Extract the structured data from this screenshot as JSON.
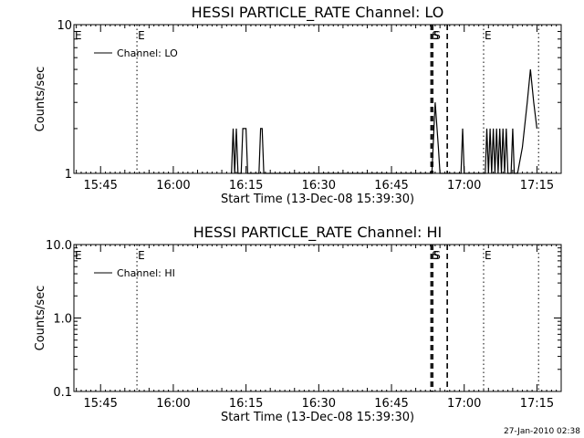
{
  "chart_data": [
    {
      "type": "line",
      "title": "HESSI PARTICLE_RATE Channel: LO",
      "xlabel": "Start Time (13-Dec-08 15:39:30)",
      "ylabel": "Counts/sec",
      "yscale": "log",
      "ylim": [
        1,
        10
      ],
      "xlim": [
        "15:39:30",
        "17:20:00"
      ],
      "x_ticks": [
        "15:45",
        "16:00",
        "16:15",
        "16:30",
        "16:45",
        "17:00",
        "17:15"
      ],
      "y_ticks": [
        "1",
        "10"
      ],
      "legend": {
        "label": "Channel: LO",
        "position": "top-left"
      },
      "markers": [
        {
          "time": "15:52:30",
          "style": "dotted",
          "label": "E"
        },
        {
          "time": "16:53:10",
          "style": "dashed",
          "label": "S"
        },
        {
          "time": "16:53:30",
          "style": "dashed",
          "label": "S"
        },
        {
          "time": "16:56:30",
          "style": "dashed",
          "label": ""
        },
        {
          "time": "17:04:00",
          "style": "dotted",
          "label": "E"
        },
        {
          "time": "17:15:20",
          "style": "dotted",
          "label": ""
        }
      ],
      "series": [
        {
          "name": "Channel: LO",
          "points": [
            [
              "16:12:00",
              1
            ],
            [
              "16:12:20",
              2
            ],
            [
              "16:12:40",
              1
            ],
            [
              "16:13:00",
              2
            ],
            [
              "16:13:20",
              1
            ],
            [
              "16:14:00",
              1
            ],
            [
              "16:14:20",
              2
            ],
            [
              "16:15:00",
              2
            ],
            [
              "16:15:20",
              1
            ],
            [
              "16:17:40",
              1
            ],
            [
              "16:18:00",
              2
            ],
            [
              "16:18:20",
              2
            ],
            [
              "16:18:40",
              1
            ],
            [
              "16:53:20",
              1
            ],
            [
              "16:54:00",
              3
            ],
            [
              "16:54:40",
              1.5
            ],
            [
              "16:55:00",
              1
            ],
            [
              "16:59:20",
              1
            ],
            [
              "16:59:40",
              2
            ],
            [
              "17:00:00",
              1
            ],
            [
              "17:04:20",
              1
            ],
            [
              "17:04:40",
              2
            ],
            [
              "17:05:00",
              1
            ],
            [
              "17:05:20",
              2
            ],
            [
              "17:05:40",
              1
            ],
            [
              "17:06:00",
              2
            ],
            [
              "17:06:20",
              1
            ],
            [
              "17:06:40",
              2
            ],
            [
              "17:07:00",
              1
            ],
            [
              "17:07:20",
              2
            ],
            [
              "17:07:40",
              1
            ],
            [
              "17:08:00",
              2
            ],
            [
              "17:08:20",
              1
            ],
            [
              "17:08:40",
              2
            ],
            [
              "17:09:00",
              1
            ],
            [
              "17:09:40",
              1
            ],
            [
              "17:10:00",
              2
            ],
            [
              "17:10:20",
              1
            ],
            [
              "17:11:00",
              1
            ],
            [
              "17:12:00",
              1.5
            ],
            [
              "17:13:00",
              3
            ],
            [
              "17:13:40",
              5
            ],
            [
              "17:14:20",
              3
            ],
            [
              "17:15:00",
              2
            ]
          ]
        }
      ]
    },
    {
      "type": "line",
      "title": "HESSI PARTICLE_RATE Channel: HI",
      "xlabel": "Start Time (13-Dec-08 15:39:30)",
      "ylabel": "Counts/sec",
      "yscale": "log",
      "ylim": [
        0.1,
        10
      ],
      "xlim": [
        "15:39:30",
        "17:20:00"
      ],
      "x_ticks": [
        "15:45",
        "16:00",
        "16:15",
        "16:30",
        "16:45",
        "17:00",
        "17:15"
      ],
      "y_ticks": [
        "0.1",
        "1.0",
        "10.0"
      ],
      "legend": {
        "label": "Channel: HI",
        "position": "top-left"
      },
      "markers": [
        {
          "time": "15:52:30",
          "style": "dotted",
          "label": "E"
        },
        {
          "time": "16:53:10",
          "style": "dashed",
          "label": "S"
        },
        {
          "time": "16:53:30",
          "style": "dashed",
          "label": "S"
        },
        {
          "time": "16:56:30",
          "style": "dashed",
          "label": ""
        },
        {
          "time": "17:04:00",
          "style": "dotted",
          "label": "E"
        },
        {
          "time": "17:15:20",
          "style": "dotted",
          "label": ""
        }
      ],
      "series": [
        {
          "name": "Channel: HI",
          "points": []
        }
      ]
    }
  ],
  "footer": {
    "timestamp": "27-Jan-2010 02:38"
  }
}
